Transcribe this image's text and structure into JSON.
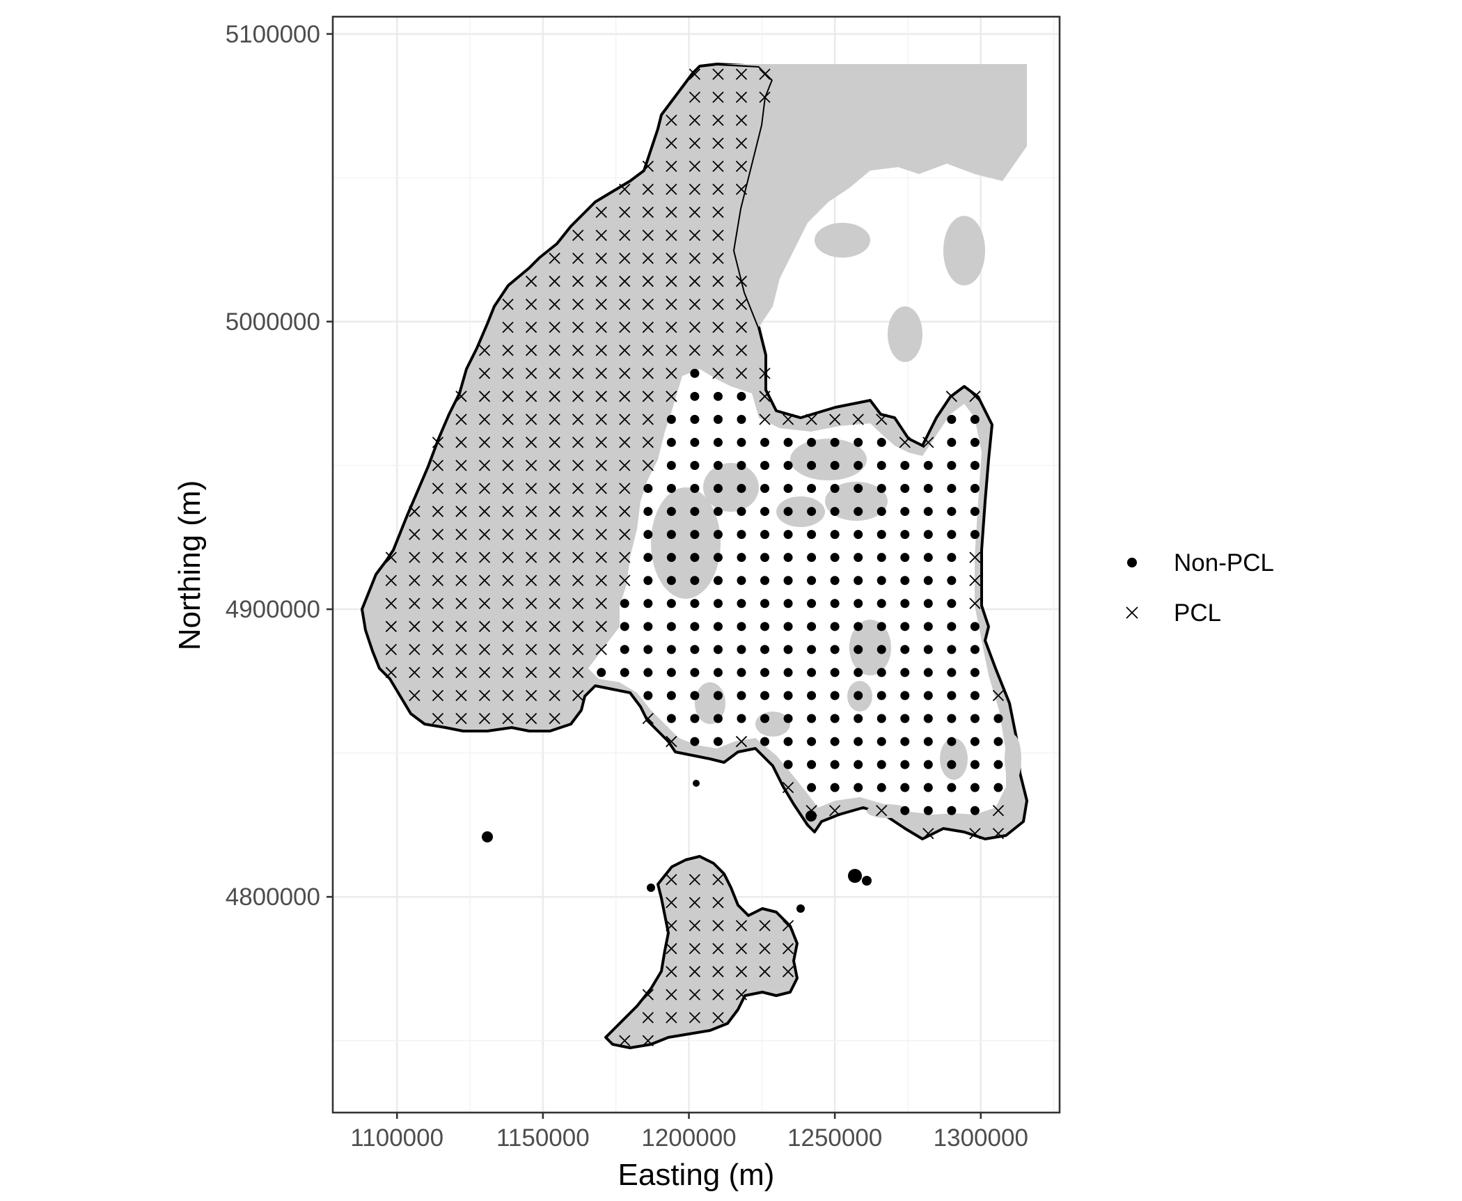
{
  "chart_data": {
    "type": "scatter",
    "title": "",
    "xlabel": "Easting (m)",
    "ylabel": "Northing (m)",
    "xlim": [
      1078000,
      1327000
    ],
    "ylim": [
      4725000,
      5106000
    ],
    "x_ticks": [
      1100000,
      1150000,
      1200000,
      1250000,
      1300000
    ],
    "y_ticks": [
      4800000,
      4900000,
      5000000,
      5100000
    ],
    "x_tick_labels": [
      "1100000",
      "1150000",
      "1200000",
      "1250000",
      "1300000"
    ],
    "y_tick_labels": [
      "4800000",
      "4900000",
      "5000000",
      "5100000"
    ],
    "grid": true,
    "grid_spacing_m": 8000,
    "legend_position": "right",
    "colors": {
      "land_fill": "#cccccc",
      "boundary": "#000000",
      "points": "#000000",
      "grid_major": "#ebebeb",
      "grid_minor": "#f2f2f2"
    },
    "series": [
      {
        "name": "Non-PCL",
        "marker": "filled-circle"
      },
      {
        "name": "PCL",
        "marker": "x-cross"
      }
    ]
  }
}
